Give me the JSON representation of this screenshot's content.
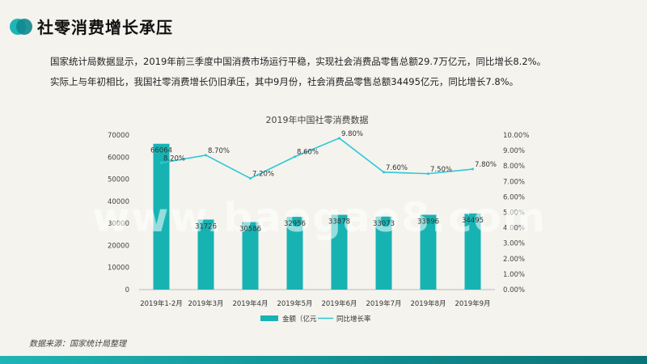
{
  "page": {
    "title": "社零消费增长承压",
    "summary_lines": [
      "国家统计局数据显示，2019年前三季度中国消费市场运行平稳，实现社会消费品零售总额29.7万亿元，同比增长8.2%。",
      "实际上与年初相比，我国社零消费增长仍旧承压，其中9月份，社会消费品零售总额34495亿元，同比增长7.8%。"
    ],
    "source": "数据来源：国家统计局整理"
  },
  "colors": {
    "bar": "#17b3b3",
    "line": "#2ec8d6",
    "accent": "#1fb5b5"
  },
  "chart_data": {
    "type": "bar",
    "title": "2019年中国社零消费数据",
    "categories": [
      "2019年1-2月",
      "2019年3月",
      "2019年4月",
      "2019年5月",
      "2019年6月",
      "2019年7月",
      "2019年8月",
      "2019年9月"
    ],
    "series": [
      {
        "name": "金额（亿元",
        "type": "bar",
        "axis": "left",
        "values": [
          66064,
          31726,
          30586,
          32956,
          33878,
          33073,
          33896,
          34495
        ],
        "labels": [
          "66064",
          "31726",
          "30586",
          "32956",
          "33878",
          "33073",
          "33896",
          "34495"
        ]
      },
      {
        "name": "同比增长率",
        "type": "line",
        "axis": "right",
        "values": [
          8.2,
          8.7,
          7.2,
          8.6,
          9.8,
          7.6,
          7.5,
          7.8
        ],
        "labels": [
          "8.20%",
          "8.70%",
          "7.20%",
          "8.60%",
          "9.80%",
          "7.60%",
          "7.50%",
          "7.80%"
        ]
      }
    ],
    "y_left": {
      "min": 0,
      "max": 70000,
      "ticks": [
        "0",
        "10000",
        "20000",
        "30000",
        "40000",
        "50000",
        "60000",
        "70000"
      ]
    },
    "y_right": {
      "min": 0,
      "max": 10,
      "ticks": [
        "0.00%",
        "1.00%",
        "2.00%",
        "3.00%",
        "4.00%",
        "5.00%",
        "6.00%",
        "7.00%",
        "8.00%",
        "9.00%",
        "10.00%"
      ]
    },
    "legend": [
      "金额（亿元",
      "同比增长率"
    ],
    "grid": false
  },
  "watermark": "www.baogao8.com"
}
